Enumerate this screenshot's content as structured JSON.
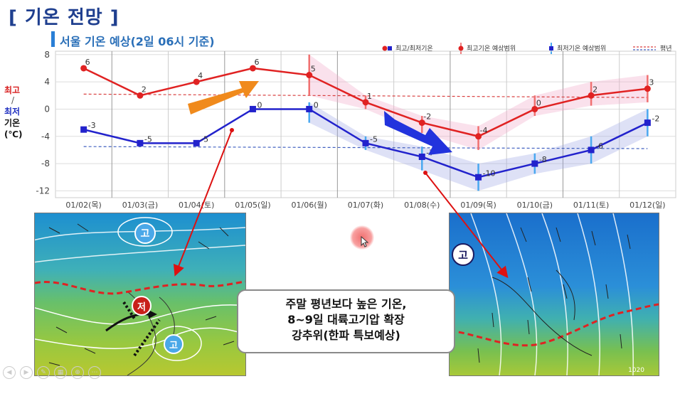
{
  "page_title": "[ 기온 전망 ]",
  "subtitle": "서울 기온 예상(2일 06시 기준)",
  "y_axis_label": {
    "max": "최고",
    "sep": "/",
    "min": "최저",
    "word": "기온",
    "unit": "(℃)"
  },
  "legend": {
    "obs": "최고/최저기온",
    "max_range": "최고기온 예상범위",
    "min_range": "최저기온 예상범위",
    "normal": "평년"
  },
  "note_lines": [
    "주말 평년보다 높은 기온,",
    "8~9일 대륙고기압 확장",
    "강추위(한파 특보예상)"
  ],
  "map_labels": {
    "high1": "고",
    "low": "저",
    "high2": "고",
    "high3": "고",
    "isobar": "1020"
  },
  "colors": {
    "max": "#e02222",
    "min": "#2222cc",
    "orange_arrow": "#f08a1c",
    "blue_arrow": "#2233dd",
    "normal_max": "#d94040",
    "normal_min": "#4060c0"
  },
  "chart_data": {
    "type": "line",
    "categories": [
      "01/02(목)",
      "01/03(금)",
      "01/04(토)",
      "01/05(일)",
      "01/06(월)",
      "01/07(화)",
      "01/08(수)",
      "01/09(목)",
      "01/10(금)",
      "01/11(토)",
      "01/12(일)"
    ],
    "yticks": [
      8,
      4,
      0,
      -4,
      -8,
      -12
    ],
    "ylim": [
      -13,
      8.5
    ],
    "series": [
      {
        "name": "최고기온",
        "values": [
          6,
          2,
          4,
          6,
          5,
          1,
          -2,
          -4,
          0,
          2,
          3
        ]
      },
      {
        "name": "최저기온",
        "values": [
          -3,
          -5,
          -5,
          0,
          0,
          -5,
          -7,
          -10,
          -8,
          -6,
          -2
        ]
      }
    ],
    "max_range": [
      null,
      null,
      null,
      null,
      [
        2,
        8
      ],
      [
        0,
        2
      ],
      [
        -3.5,
        -1
      ],
      [
        -6,
        -2.5
      ],
      [
        -1,
        2
      ],
      [
        0.5,
        4
      ],
      [
        1,
        5
      ]
    ],
    "min_range": [
      null,
      null,
      null,
      null,
      [
        -2,
        1
      ],
      [
        -6,
        -4
      ],
      [
        -9,
        -5.5
      ],
      [
        -12,
        -8
      ],
      [
        -9.5,
        -6.5
      ],
      [
        -8,
        -4
      ],
      [
        -4,
        0
      ]
    ],
    "normal_max": [
      2.2,
      1.7
    ],
    "normal_min": [
      -5.5,
      -5.8
    ],
    "grid": true
  }
}
